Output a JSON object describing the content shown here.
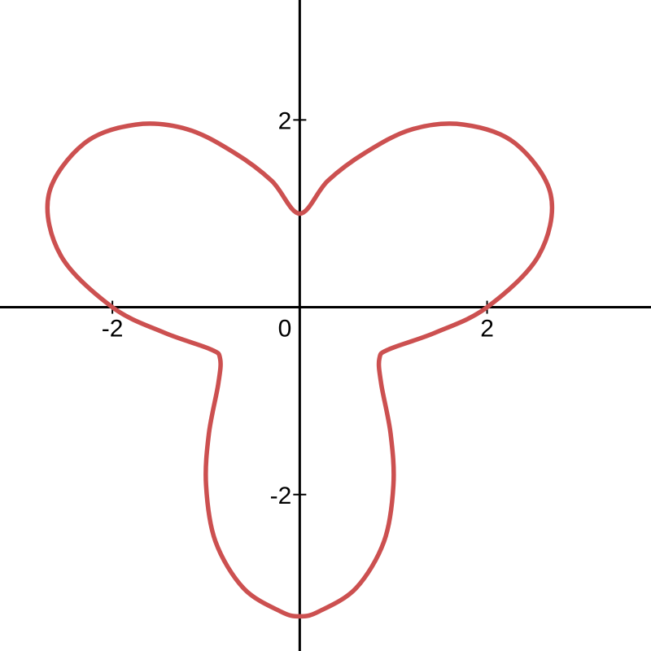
{
  "chart_data": {
    "type": "line",
    "title": "",
    "xlabel": "",
    "ylabel": "",
    "xlim": [
      -3.2,
      3.75
    ],
    "ylim": [
      -3.67,
      3.28
    ],
    "grid": false,
    "legend": "none",
    "x_ticks": [
      {
        "value": -2,
        "label": "-2"
      },
      {
        "value": 2,
        "label": "2"
      }
    ],
    "y_ticks": [
      {
        "value": -2,
        "label": "-2"
      },
      {
        "value": 2,
        "label": "2"
      }
    ],
    "origin_label": "0",
    "series": [
      {
        "color": "#cc5050",
        "style": "solid",
        "points": [
          {
            "x": 0.0,
            "y": 1.0
          },
          {
            "x": 0.3,
            "y": 1.35
          },
          {
            "x": 0.7,
            "y": 1.65
          },
          {
            "x": 1.2,
            "y": 1.9
          },
          {
            "x": 1.75,
            "y": 1.95
          },
          {
            "x": 2.3,
            "y": 1.75
          },
          {
            "x": 2.68,
            "y": 1.2
          },
          {
            "x": 2.55,
            "y": 0.55
          },
          {
            "x": 2.0,
            "y": 0.0
          },
          {
            "x": 1.45,
            "y": -0.27
          },
          {
            "x": 0.95,
            "y": -0.45
          },
          {
            "x": 0.85,
            "y": -0.55
          },
          {
            "x": 0.87,
            "y": -0.82
          },
          {
            "x": 0.97,
            "y": -1.35
          },
          {
            "x": 1.0,
            "y": -1.9
          },
          {
            "x": 0.9,
            "y": -2.5
          },
          {
            "x": 0.6,
            "y": -3.0
          },
          {
            "x": 0.2,
            "y": -3.25
          },
          {
            "x": 0.0,
            "y": -3.3
          },
          {
            "x": -0.2,
            "y": -3.25
          },
          {
            "x": -0.6,
            "y": -3.0
          },
          {
            "x": -0.9,
            "y": -2.5
          },
          {
            "x": -1.0,
            "y": -1.9
          },
          {
            "x": -0.97,
            "y": -1.35
          },
          {
            "x": -0.87,
            "y": -0.82
          },
          {
            "x": -0.85,
            "y": -0.55
          },
          {
            "x": -0.95,
            "y": -0.45
          },
          {
            "x": -1.45,
            "y": -0.27
          },
          {
            "x": -2.0,
            "y": 0.0
          },
          {
            "x": -2.55,
            "y": 0.55
          },
          {
            "x": -2.68,
            "y": 1.2
          },
          {
            "x": -2.3,
            "y": 1.75
          },
          {
            "x": -1.75,
            "y": 1.95
          },
          {
            "x": -1.2,
            "y": 1.9
          },
          {
            "x": -0.7,
            "y": 1.65
          },
          {
            "x": -0.3,
            "y": 1.35
          },
          {
            "x": 0.0,
            "y": 1.0
          }
        ]
      }
    ]
  }
}
